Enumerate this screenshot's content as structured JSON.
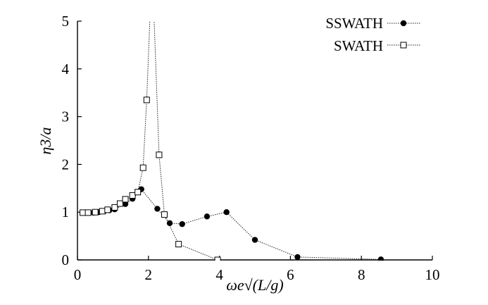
{
  "chart_data": {
    "type": "line",
    "xlabel": "ωe√(L/g)",
    "ylabel": "η3/a",
    "xlim": [
      0,
      10
    ],
    "ylim": [
      0,
      5
    ],
    "xticks": [
      "0",
      "2",
      "4",
      "6",
      "8",
      "10"
    ],
    "yticks": [
      "0",
      "1",
      "2",
      "3",
      "4",
      "5"
    ],
    "grid": false,
    "legend_position": "top-right",
    "series": [
      {
        "name": "SSWATH",
        "marker": "filled-circle",
        "x": [
          0.45,
          0.6,
          0.75,
          0.9,
          1.05,
          1.35,
          1.55,
          1.8,
          2.25,
          2.6,
          2.95,
          3.65,
          4.2,
          5.0,
          6.2,
          8.55
        ],
        "y": [
          0.99,
          1.0,
          1.02,
          1.04,
          1.06,
          1.17,
          1.28,
          1.48,
          1.07,
          0.77,
          0.75,
          0.91,
          1.0,
          0.42,
          0.06,
          0.01
        ]
      },
      {
        "name": "SWATH",
        "marker": "open-square",
        "x": [
          0.15,
          0.3,
          0.5,
          0.7,
          0.85,
          1.05,
          1.2,
          1.35,
          1.55,
          1.7,
          1.85,
          1.95,
          2.05,
          2.15,
          2.3,
          2.45,
          2.85,
          3.95
        ],
        "y": [
          0.99,
          0.99,
          1.0,
          1.02,
          1.05,
          1.1,
          1.18,
          1.27,
          1.35,
          1.42,
          1.93,
          3.35,
          5.2,
          5.2,
          2.2,
          0.95,
          0.33,
          0.0
        ]
      }
    ]
  }
}
